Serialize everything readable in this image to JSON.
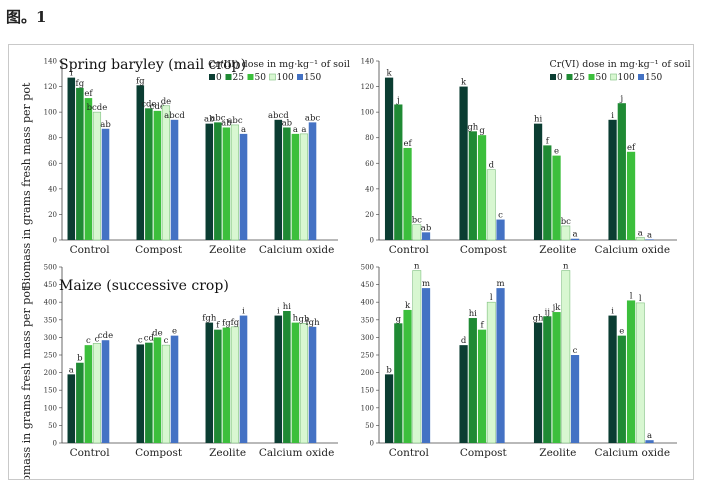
{
  "figure_label": "图。1",
  "ylabel": "Biomass in grams fresh mass per pot",
  "colors": {
    "0": "#0b3d32",
    "25": "#1f8a34",
    "50": "#3cbf3c",
    "100": "#d8f7d1",
    "150": "#4472c4"
  },
  "chart_data": [
    {
      "id": "p1",
      "type": "bar",
      "title": "Spring baryley (mail crop)",
      "legend_title": "Cr(III) dose in mg·kg⁻¹ of soil",
      "legend_items": [
        "0",
        "25",
        "50",
        "100",
        "150"
      ],
      "ylim": [
        0,
        140
      ],
      "yticks": [
        0,
        20,
        40,
        60,
        80,
        100,
        120,
        140
      ],
      "categories": [
        "Control",
        "Compost",
        "Zeolite",
        "Calcium oxide"
      ],
      "series": [
        {
          "name": "0",
          "values": [
            127,
            121,
            91,
            94
          ],
          "labels": [
            "i",
            "fg",
            "ab",
            "abcd"
          ]
        },
        {
          "name": "25",
          "values": [
            119,
            103,
            92,
            88
          ],
          "labels": [
            "fg",
            "cde",
            "abc",
            "ab"
          ]
        },
        {
          "name": "50",
          "values": [
            111,
            101,
            88,
            83
          ],
          "labels": [
            "ef",
            "cde",
            "ab",
            "a"
          ]
        },
        {
          "name": "100",
          "values": [
            100,
            105,
            90,
            83
          ],
          "labels": [
            "bcde",
            "de",
            "abc",
            "a"
          ]
        },
        {
          "name": "150",
          "values": [
            87,
            94,
            83,
            92
          ],
          "labels": [
            "ab",
            "abcd",
            "a",
            "abc"
          ]
        }
      ]
    },
    {
      "id": "p2",
      "type": "bar",
      "title": "",
      "legend_title": "Cr(VI) dose in mg·kg⁻¹ of soil",
      "legend_items": [
        "0",
        "25",
        "50",
        "100",
        "150"
      ],
      "ylim": [
        0,
        140
      ],
      "yticks": [
        0,
        20,
        40,
        60,
        80,
        100,
        120,
        140
      ],
      "categories": [
        "Control",
        "Compost",
        "Zeolite",
        "Calcium oxide"
      ],
      "series": [
        {
          "name": "0",
          "values": [
            127,
            120,
            91,
            94
          ],
          "labels": [
            "k",
            "k",
            "hi",
            "i"
          ]
        },
        {
          "name": "25",
          "values": [
            106,
            85,
            74,
            107
          ],
          "labels": [
            "j",
            "gh",
            "f",
            "j"
          ]
        },
        {
          "name": "50",
          "values": [
            72,
            82,
            66,
            69
          ],
          "labels": [
            "ef",
            "g",
            "e",
            "ef"
          ]
        },
        {
          "name": "100",
          "values": [
            12,
            55,
            11,
            2
          ],
          "labels": [
            "bc",
            "d",
            "bc",
            "a"
          ]
        },
        {
          "name": "150",
          "values": [
            6,
            16,
            1,
            0.5
          ],
          "labels": [
            "ab",
            "c",
            "a",
            "a"
          ]
        }
      ]
    },
    {
      "id": "p3",
      "type": "bar",
      "title": "Maize (successive crop)",
      "ylim": [
        0,
        500
      ],
      "yticks": [
        0,
        50,
        100,
        150,
        200,
        250,
        300,
        350,
        400,
        450,
        500
      ],
      "categories": [
        "Control",
        "Compost",
        "Zeolite",
        "Calcium oxide"
      ],
      "series": [
        {
          "name": "0",
          "values": [
            195,
            280,
            342,
            362
          ],
          "labels": [
            "a",
            "c",
            "fgh",
            "i"
          ]
        },
        {
          "name": "25",
          "values": [
            228,
            285,
            322,
            375
          ],
          "labels": [
            "b",
            "cd",
            "f",
            "hi"
          ]
        },
        {
          "name": "50",
          "values": [
            278,
            300,
            328,
            342
          ],
          "labels": [
            "c",
            "de",
            "fg",
            "h"
          ]
        },
        {
          "name": "100",
          "values": [
            283,
            278,
            330,
            340
          ],
          "labels": [
            "c",
            "c",
            "fg",
            "gh"
          ]
        },
        {
          "name": "150",
          "values": [
            292,
            305,
            362,
            330
          ],
          "labels": [
            "cde",
            "e",
            "i",
            "fgh"
          ]
        }
      ]
    },
    {
      "id": "p4",
      "type": "bar",
      "title": "",
      "ylim": [
        0,
        500
      ],
      "yticks": [
        0,
        50,
        100,
        150,
        200,
        250,
        300,
        350,
        400,
        450,
        500
      ],
      "categories": [
        "Control",
        "Compost",
        "Zeolite",
        "Calcium oxide"
      ],
      "series": [
        {
          "name": "0",
          "values": [
            195,
            278,
            342,
            362
          ],
          "labels": [
            "b",
            "d",
            "gh",
            "i"
          ]
        },
        {
          "name": "25",
          "values": [
            340,
            355,
            360,
            305
          ],
          "labels": [
            "g",
            "hi",
            "ij",
            "e"
          ]
        },
        {
          "name": "50",
          "values": [
            378,
            322,
            372,
            405
          ],
          "labels": [
            "k",
            "f",
            "jk",
            "l"
          ]
        },
        {
          "name": "100",
          "values": [
            490,
            400,
            490,
            398
          ],
          "labels": [
            "n",
            "l",
            "n",
            "l"
          ]
        },
        {
          "name": "150",
          "values": [
            440,
            440,
            250,
            8
          ],
          "labels": [
            "m",
            "m",
            "c",
            "a"
          ]
        }
      ]
    }
  ]
}
